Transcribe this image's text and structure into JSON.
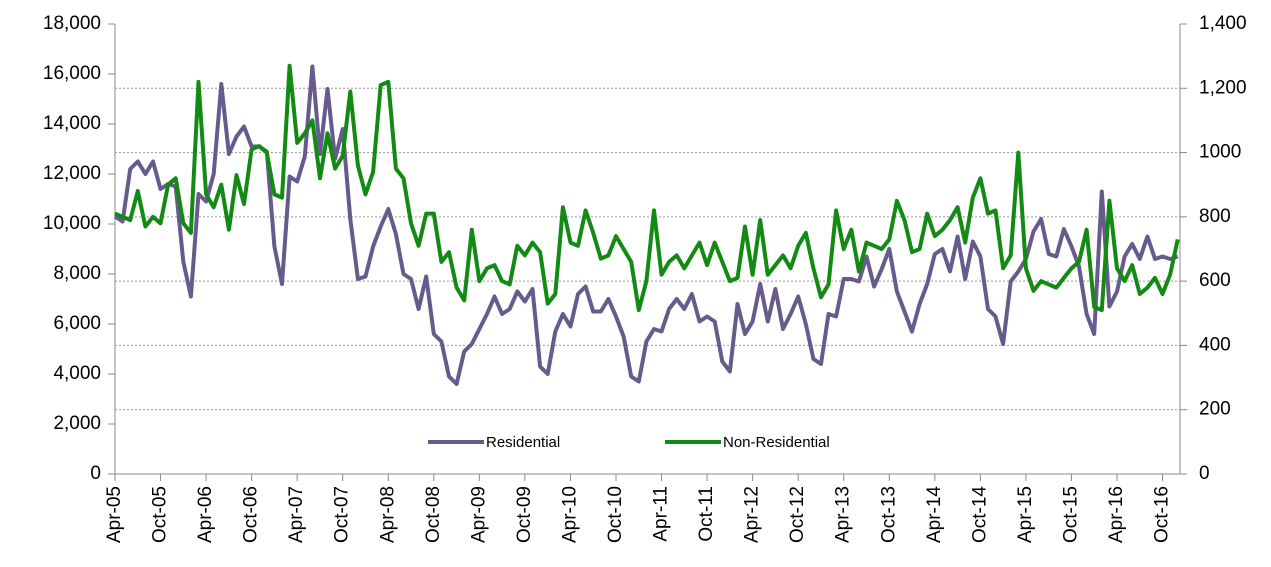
{
  "chart_data": {
    "type": "line",
    "categories": [
      "Apr-05",
      null,
      null,
      null,
      null,
      null,
      "Oct-05",
      null,
      null,
      null,
      null,
      null,
      "Apr-06",
      null,
      null,
      null,
      null,
      null,
      "Oct-06",
      null,
      null,
      null,
      null,
      null,
      "Apr-07",
      null,
      null,
      null,
      null,
      null,
      "Oct-07",
      null,
      null,
      null,
      null,
      null,
      "Apr-08",
      null,
      null,
      null,
      null,
      null,
      "Oct-08",
      null,
      null,
      null,
      null,
      null,
      "Apr-09",
      null,
      null,
      null,
      null,
      null,
      "Oct-09",
      null,
      null,
      null,
      null,
      null,
      "Apr-10",
      null,
      null,
      null,
      null,
      null,
      "Oct-10",
      null,
      null,
      null,
      null,
      null,
      "Apr-11",
      null,
      null,
      null,
      null,
      null,
      "Oct-11",
      null,
      null,
      null,
      null,
      null,
      "Apr-12",
      null,
      null,
      null,
      null,
      null,
      "Oct-12",
      null,
      null,
      null,
      null,
      null,
      "Apr-13",
      null,
      null,
      null,
      null,
      null,
      "Oct-13",
      null,
      null,
      null,
      null,
      null,
      "Apr-14",
      null,
      null,
      null,
      null,
      null,
      "Oct-14",
      null,
      null,
      null,
      null,
      null,
      "Apr-15",
      null,
      null,
      null,
      null,
      null,
      "Oct-15",
      null,
      null,
      null,
      null,
      null,
      "Apr-16",
      null,
      null,
      null,
      null,
      null,
      "Oct-16",
      null,
      null
    ],
    "series": [
      {
        "name": "Residential",
        "color": "#675a8c",
        "values": [
          10300,
          10100,
          12200,
          12500,
          12000,
          12500,
          11400,
          11600,
          11500,
          8500,
          7100,
          11200,
          10900,
          12000,
          15600,
          12800,
          13500,
          13900,
          13100,
          13100,
          12900,
          9100,
          7600,
          11900,
          11700,
          12700,
          16300,
          12800,
          15400,
          12600,
          13800,
          10200,
          7800,
          7900,
          9100,
          9900,
          10600,
          9600,
          8000,
          7800,
          6600,
          7900,
          5600,
          5300,
          3900,
          3600,
          4900,
          5200,
          5800,
          6400,
          7100,
          6400,
          6600,
          7300,
          6900,
          7400,
          4300,
          4000,
          5700,
          6400,
          5900,
          7200,
          7500,
          6500,
          6500,
          7000,
          6300,
          5500,
          3900,
          3700,
          5300,
          5800,
          5700,
          6600,
          7000,
          6600,
          7200,
          6100,
          6300,
          6100,
          4500,
          4100,
          6800,
          5600,
          6100,
          7600,
          6100,
          7400,
          5800,
          6400,
          7100,
          6000,
          4600,
          4400,
          6400,
          6300,
          7800,
          7800,
          7700,
          8700,
          7500,
          8200,
          9000,
          7300,
          6500,
          5700,
          6800,
          7600,
          8800,
          9000,
          8100,
          9500,
          7800,
          9300,
          8700,
          6600,
          6300,
          5200,
          7700,
          8100,
          8600,
          9700,
          10200,
          8800,
          8700,
          9800,
          9100,
          8300,
          6400,
          5600,
          11300,
          6700,
          7300,
          8700,
          9200,
          8600,
          9500,
          8600,
          8700,
          8600,
          8700
        ]
      },
      {
        "name": "Non-Residential",
        "color": "#138a13",
        "axis": "y2",
        "values": [
          810,
          800,
          790,
          880,
          770,
          800,
          780,
          900,
          920,
          780,
          750,
          1220,
          870,
          830,
          900,
          760,
          930,
          840,
          1010,
          1020,
          1000,
          870,
          860,
          1270,
          1030,
          1060,
          1100,
          920,
          1060,
          950,
          990,
          1190,
          960,
          870,
          940,
          1210,
          1220,
          950,
          920,
          780,
          710,
          810,
          810,
          660,
          690,
          580,
          540,
          760,
          600,
          640,
          650,
          600,
          590,
          710,
          680,
          720,
          690,
          530,
          560,
          830,
          720,
          710,
          820,
          750,
          670,
          680,
          740,
          700,
          660,
          510,
          600,
          820,
          620,
          660,
          680,
          640,
          680,
          720,
          650,
          720,
          660,
          600,
          610,
          770,
          620,
          790,
          620,
          650,
          680,
          640,
          710,
          750,
          640,
          550,
          590,
          820,
          700,
          760,
          630,
          720,
          710,
          700,
          730,
          850,
          790,
          690,
          700,
          810,
          740,
          760,
          790,
          830,
          720,
          860,
          920,
          810,
          820,
          640,
          680,
          1000,
          640,
          570,
          600,
          590,
          580,
          610,
          640,
          660,
          760,
          520,
          510,
          850,
          640,
          600,
          650,
          560,
          580,
          610,
          560,
          620,
          730
        ]
      }
    ],
    "ylim": [
      0,
      18000
    ],
    "yticks": [
      0,
      {
        "value": 2000,
        "label": "2,000"
      },
      {
        "value": 4000,
        "label": "4,000"
      },
      {
        "value": 6000,
        "label": "6,000"
      },
      {
        "value": 8000,
        "label": "8,000"
      },
      {
        "value": 10000,
        "label": "10,000"
      },
      {
        "value": 12000,
        "label": "12,000"
      },
      {
        "value": 14000,
        "label": "14,000"
      },
      {
        "value": 16000,
        "label": "16,000"
      },
      {
        "value": 18000,
        "label": "18,000"
      }
    ],
    "y2lim": [
      0,
      1400
    ],
    "y2ticks": [
      0,
      200,
      400,
      600,
      800,
      1000,
      {
        "value": 1200,
        "label": "1,200"
      },
      {
        "value": 1400,
        "label": "1,400"
      }
    ],
    "grid": true
  }
}
